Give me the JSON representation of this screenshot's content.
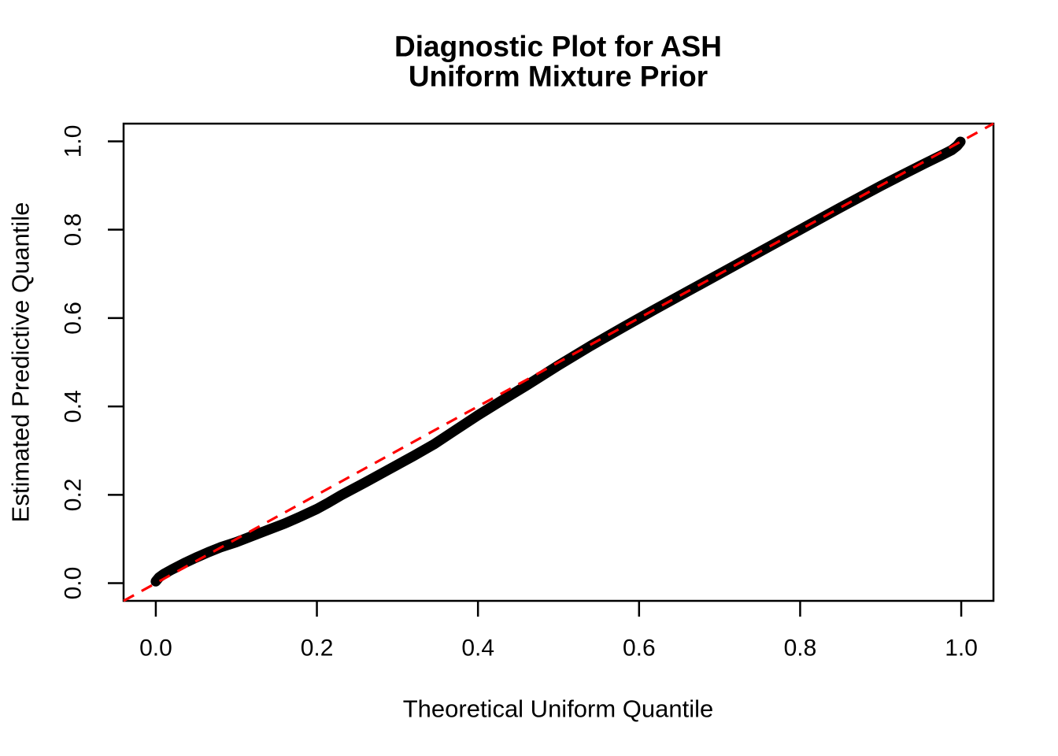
{
  "figure": {
    "background_color": "#ffffff",
    "title_line1": "Diagnostic Plot for ASH",
    "title_line2": "Uniform Mixture Prior"
  },
  "chart_data": {
    "type": "line",
    "title": "Diagnostic Plot for ASH Uniform Mixture Prior",
    "xlabel": "Theoretical Uniform Quantile",
    "ylabel": "Estimated Predictive Quantile",
    "xlim": [
      -0.04,
      1.04
    ],
    "ylim": [
      -0.04,
      1.04
    ],
    "grid": false,
    "legend": "none",
    "x_ticks": {
      "values": [
        0.0,
        0.2,
        0.4,
        0.6,
        0.8,
        1.0
      ],
      "labels": [
        "0.0",
        "0.2",
        "0.4",
        "0.6",
        "0.8",
        "1.0"
      ]
    },
    "y_ticks": {
      "values": [
        0.0,
        0.2,
        0.4,
        0.6,
        0.8,
        1.0
      ],
      "labels": [
        "0.0",
        "0.2",
        "0.4",
        "0.6",
        "0.8",
        "1.0"
      ]
    },
    "series": [
      {
        "name": "estimated-predictive-quantiles",
        "color": "#000000",
        "style": "thick-point-band",
        "points": [
          [
            0.0,
            0.004
          ],
          [
            0.004,
            0.013
          ],
          [
            0.01,
            0.021
          ],
          [
            0.02,
            0.031
          ],
          [
            0.035,
            0.045
          ],
          [
            0.05,
            0.058
          ],
          [
            0.065,
            0.07
          ],
          [
            0.08,
            0.081
          ],
          [
            0.1,
            0.093
          ],
          [
            0.13,
            0.114
          ],
          [
            0.16,
            0.135
          ],
          [
            0.18,
            0.151
          ],
          [
            0.2,
            0.168
          ],
          [
            0.215,
            0.183
          ],
          [
            0.23,
            0.199
          ],
          [
            0.26,
            0.228
          ],
          [
            0.29,
            0.258
          ],
          [
            0.32,
            0.288
          ],
          [
            0.345,
            0.314
          ],
          [
            0.37,
            0.344
          ],
          [
            0.4,
            0.38
          ],
          [
            0.43,
            0.414
          ],
          [
            0.46,
            0.447
          ],
          [
            0.5,
            0.493
          ],
          [
            0.54,
            0.537
          ],
          [
            0.58,
            0.579
          ],
          [
            0.62,
            0.62
          ],
          [
            0.66,
            0.66
          ],
          [
            0.7,
            0.7
          ],
          [
            0.75,
            0.75
          ],
          [
            0.8,
            0.8
          ],
          [
            0.85,
            0.85
          ],
          [
            0.9,
            0.899
          ],
          [
            0.93,
            0.927
          ],
          [
            0.955,
            0.95
          ],
          [
            0.975,
            0.968
          ],
          [
            0.988,
            0.98
          ],
          [
            0.995,
            0.99
          ],
          [
            0.999,
            0.999
          ]
        ]
      }
    ],
    "reference_line": {
      "slope": 1,
      "intercept": 0,
      "color": "#ff0000",
      "style": "dashed"
    }
  }
}
